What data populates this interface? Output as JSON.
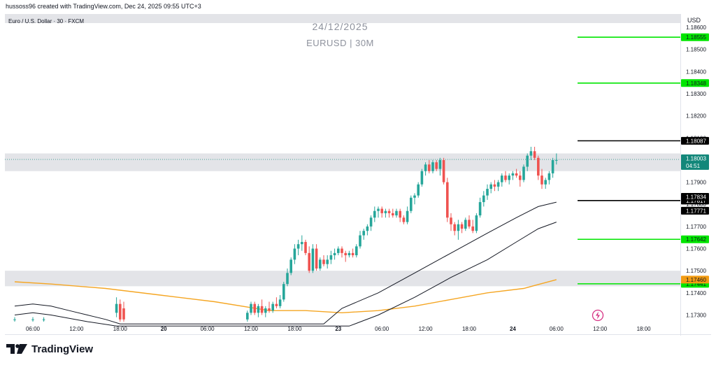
{
  "header": {
    "created_by": "hussoss96 created with TradingView.com, Dec 24, 2025 09:55 UTC+3",
    "symbol_line": "Euro / U.S. Dollar · 30 · FXCM",
    "watermark_date": "24/12/2025",
    "watermark_symbol": "EURUSD | 30M",
    "currency": "USD"
  },
  "logo": {
    "text": "TradingView",
    "icon": "tradingview-logo-icon"
  },
  "colors": {
    "up": "#26a69a",
    "down": "#ef5350",
    "zone": "#e3e4e8",
    "green_line": "#00e600",
    "black_line": "#000000",
    "orange_ma": "#f5a623",
    "price_tag": "#12877a",
    "orange_tag": "#f39c12",
    "flash_icon": "#d63384"
  },
  "chart_data": {
    "type": "candlestick",
    "symbol": "EURUSD",
    "timeframe": "30",
    "y_ticks": [
      1.186,
      1.185,
      1.184,
      1.183,
      1.182,
      1.181,
      1.18,
      1.179,
      1.178,
      1.177,
      1.176,
      1.175,
      1.174,
      1.173
    ],
    "ylim": [
      1.1727,
      1.1866
    ],
    "x_ticks": [
      {
        "label": "06:00",
        "bar": 5,
        "bold": false
      },
      {
        "label": "12:00",
        "bar": 17,
        "bold": false
      },
      {
        "label": "18:00",
        "bar": 29,
        "bold": false
      },
      {
        "label": "20",
        "bar": 41,
        "bold": true
      },
      {
        "label": "06:00",
        "bar": 53,
        "bold": false
      },
      {
        "label": "12:00",
        "bar": 65,
        "bold": false
      },
      {
        "label": "18:00",
        "bar": 77,
        "bold": false
      },
      {
        "label": "23",
        "bar": 89,
        "bold": true
      },
      {
        "label": "06:00",
        "bar": 101,
        "bold": false
      },
      {
        "label": "12:00",
        "bar": 113,
        "bold": false
      },
      {
        "label": "18:00",
        "bar": 125,
        "bold": false
      },
      {
        "label": "24",
        "bar": 137,
        "bold": true
      },
      {
        "label": "06:00",
        "bar": 149,
        "bold": false
      },
      {
        "label": "12:00",
        "bar": 161,
        "bold": false
      },
      {
        "label": "18:00",
        "bar": 173,
        "bold": false
      }
    ],
    "candles": [
      {
        "bar": 0,
        "o": 1.1728,
        "h": 1.1729,
        "l": 1.1727,
        "c": 1.1728
      },
      {
        "bar": 5,
        "o": 1.1728,
        "h": 1.1729,
        "l": 1.1727,
        "c": 1.1728
      },
      {
        "bar": 8,
        "o": 1.1728,
        "h": 1.1729,
        "l": 1.1727,
        "c": 1.1728
      },
      {
        "bar": 28,
        "o": 1.1731,
        "h": 1.1738,
        "l": 1.1729,
        "c": 1.1735
      },
      {
        "bar": 29,
        "o": 1.1735,
        "h": 1.1737,
        "l": 1.1727,
        "c": 1.1728
      },
      {
        "bar": 30,
        "o": 1.1733,
        "h": 1.1736,
        "l": 1.1727,
        "c": 1.1728
      },
      {
        "bar": 64,
        "o": 1.1728,
        "h": 1.1732,
        "l": 1.1727,
        "c": 1.1731
      },
      {
        "bar": 65,
        "o": 1.1731,
        "h": 1.1736,
        "l": 1.173,
        "c": 1.1735
      },
      {
        "bar": 66,
        "o": 1.1735,
        "h": 1.1736,
        "l": 1.173,
        "c": 1.1731
      },
      {
        "bar": 67,
        "o": 1.1731,
        "h": 1.1735,
        "l": 1.1729,
        "c": 1.1734
      },
      {
        "bar": 68,
        "o": 1.1734,
        "h": 1.1737,
        "l": 1.173,
        "c": 1.1731
      },
      {
        "bar": 69,
        "o": 1.1731,
        "h": 1.1734,
        "l": 1.1729,
        "c": 1.1733
      },
      {
        "bar": 70,
        "o": 1.1733,
        "h": 1.1736,
        "l": 1.1731,
        "c": 1.1732
      },
      {
        "bar": 71,
        "o": 1.1732,
        "h": 1.1736,
        "l": 1.1731,
        "c": 1.1735
      },
      {
        "bar": 72,
        "o": 1.1735,
        "h": 1.1738,
        "l": 1.1733,
        "c": 1.1734
      },
      {
        "bar": 73,
        "o": 1.1734,
        "h": 1.1739,
        "l": 1.1733,
        "c": 1.1737
      },
      {
        "bar": 74,
        "o": 1.1737,
        "h": 1.1745,
        "l": 1.1736,
        "c": 1.1744
      },
      {
        "bar": 75,
        "o": 1.1744,
        "h": 1.1751,
        "l": 1.1743,
        "c": 1.1749
      },
      {
        "bar": 76,
        "o": 1.1749,
        "h": 1.1756,
        "l": 1.1748,
        "c": 1.1755
      },
      {
        "bar": 77,
        "o": 1.1755,
        "h": 1.1762,
        "l": 1.1753,
        "c": 1.176
      },
      {
        "bar": 78,
        "o": 1.176,
        "h": 1.1764,
        "l": 1.1757,
        "c": 1.1762
      },
      {
        "bar": 79,
        "o": 1.1762,
        "h": 1.1766,
        "l": 1.1759,
        "c": 1.1763
      },
      {
        "bar": 80,
        "o": 1.1763,
        "h": 1.1764,
        "l": 1.1757,
        "c": 1.1758
      },
      {
        "bar": 81,
        "o": 1.1758,
        "h": 1.1761,
        "l": 1.1749,
        "c": 1.175
      },
      {
        "bar": 82,
        "o": 1.175,
        "h": 1.1762,
        "l": 1.1749,
        "c": 1.176
      },
      {
        "bar": 83,
        "o": 1.176,
        "h": 1.1762,
        "l": 1.175,
        "c": 1.1751
      },
      {
        "bar": 84,
        "o": 1.1751,
        "h": 1.1756,
        "l": 1.175,
        "c": 1.1755
      },
      {
        "bar": 85,
        "o": 1.1755,
        "h": 1.1757,
        "l": 1.1752,
        "c": 1.1753
      },
      {
        "bar": 86,
        "o": 1.1753,
        "h": 1.1757,
        "l": 1.1751,
        "c": 1.1755
      },
      {
        "bar": 87,
        "o": 1.1755,
        "h": 1.1759,
        "l": 1.1753,
        "c": 1.1757
      },
      {
        "bar": 88,
        "o": 1.1757,
        "h": 1.176,
        "l": 1.1755,
        "c": 1.1758
      },
      {
        "bar": 89,
        "o": 1.1758,
        "h": 1.1761,
        "l": 1.1757,
        "c": 1.176
      },
      {
        "bar": 90,
        "o": 1.176,
        "h": 1.1761,
        "l": 1.1756,
        "c": 1.1758
      },
      {
        "bar": 91,
        "o": 1.1758,
        "h": 1.1759,
        "l": 1.1754,
        "c": 1.1757
      },
      {
        "bar": 92,
        "o": 1.1757,
        "h": 1.1759,
        "l": 1.1756,
        "c": 1.1758
      },
      {
        "bar": 93,
        "o": 1.1758,
        "h": 1.176,
        "l": 1.1756,
        "c": 1.1757
      },
      {
        "bar": 94,
        "o": 1.1757,
        "h": 1.1762,
        "l": 1.1756,
        "c": 1.1761
      },
      {
        "bar": 95,
        "o": 1.1761,
        "h": 1.1768,
        "l": 1.176,
        "c": 1.1766
      },
      {
        "bar": 96,
        "o": 1.1766,
        "h": 1.1769,
        "l": 1.1764,
        "c": 1.1768
      },
      {
        "bar": 97,
        "o": 1.1768,
        "h": 1.1771,
        "l": 1.1766,
        "c": 1.177
      },
      {
        "bar": 98,
        "o": 1.177,
        "h": 1.1775,
        "l": 1.1768,
        "c": 1.1774
      },
      {
        "bar": 99,
        "o": 1.1774,
        "h": 1.1779,
        "l": 1.1772,
        "c": 1.1777
      },
      {
        "bar": 100,
        "o": 1.1777,
        "h": 1.1779,
        "l": 1.1774,
        "c": 1.1778
      },
      {
        "bar": 101,
        "o": 1.1778,
        "h": 1.1779,
        "l": 1.1774,
        "c": 1.1776
      },
      {
        "bar": 102,
        "o": 1.1776,
        "h": 1.1778,
        "l": 1.1774,
        "c": 1.1777
      },
      {
        "bar": 103,
        "o": 1.1777,
        "h": 1.1778,
        "l": 1.1774,
        "c": 1.1776
      },
      {
        "bar": 104,
        "o": 1.1776,
        "h": 1.1778,
        "l": 1.1774,
        "c": 1.1775
      },
      {
        "bar": 105,
        "o": 1.1775,
        "h": 1.1778,
        "l": 1.1774,
        "c": 1.1777
      },
      {
        "bar": 106,
        "o": 1.1777,
        "h": 1.1778,
        "l": 1.1772,
        "c": 1.1774
      },
      {
        "bar": 107,
        "o": 1.1774,
        "h": 1.1775,
        "l": 1.1771,
        "c": 1.1772
      },
      {
        "bar": 108,
        "o": 1.1772,
        "h": 1.1779,
        "l": 1.1771,
        "c": 1.1777
      },
      {
        "bar": 109,
        "o": 1.1777,
        "h": 1.1784,
        "l": 1.1776,
        "c": 1.1783
      },
      {
        "bar": 110,
        "o": 1.1783,
        "h": 1.1785,
        "l": 1.178,
        "c": 1.1784
      },
      {
        "bar": 111,
        "o": 1.1784,
        "h": 1.179,
        "l": 1.1783,
        "c": 1.1789
      },
      {
        "bar": 112,
        "o": 1.1789,
        "h": 1.1796,
        "l": 1.1788,
        "c": 1.1795
      },
      {
        "bar": 113,
        "o": 1.1795,
        "h": 1.1799,
        "l": 1.1793,
        "c": 1.1798
      },
      {
        "bar": 114,
        "o": 1.1798,
        "h": 1.18,
        "l": 1.1794,
        "c": 1.1795
      },
      {
        "bar": 115,
        "o": 1.1795,
        "h": 1.18,
        "l": 1.1794,
        "c": 1.1799
      },
      {
        "bar": 116,
        "o": 1.1799,
        "h": 1.18,
        "l": 1.1795,
        "c": 1.1796
      },
      {
        "bar": 117,
        "o": 1.1796,
        "h": 1.1801,
        "l": 1.1793,
        "c": 1.18
      },
      {
        "bar": 118,
        "o": 1.18,
        "h": 1.1801,
        "l": 1.1789,
        "c": 1.179
      },
      {
        "bar": 119,
        "o": 1.179,
        "h": 1.1792,
        "l": 1.1772,
        "c": 1.1774
      },
      {
        "bar": 120,
        "o": 1.1774,
        "h": 1.1776,
        "l": 1.1768,
        "c": 1.1771
      },
      {
        "bar": 121,
        "o": 1.1771,
        "h": 1.1772,
        "l": 1.1766,
        "c": 1.1768
      },
      {
        "bar": 122,
        "o": 1.1768,
        "h": 1.1773,
        "l": 1.1764,
        "c": 1.1771
      },
      {
        "bar": 123,
        "o": 1.1771,
        "h": 1.1772,
        "l": 1.1767,
        "c": 1.1769
      },
      {
        "bar": 124,
        "o": 1.1769,
        "h": 1.1774,
        "l": 1.1768,
        "c": 1.1773
      },
      {
        "bar": 125,
        "o": 1.1773,
        "h": 1.1775,
        "l": 1.1769,
        "c": 1.177
      },
      {
        "bar": 126,
        "o": 1.177,
        "h": 1.1773,
        "l": 1.1767,
        "c": 1.1768
      },
      {
        "bar": 127,
        "o": 1.1768,
        "h": 1.1776,
        "l": 1.1767,
        "c": 1.1775
      },
      {
        "bar": 128,
        "o": 1.1775,
        "h": 1.1783,
        "l": 1.1774,
        "c": 1.1781
      },
      {
        "bar": 129,
        "o": 1.1781,
        "h": 1.1786,
        "l": 1.1779,
        "c": 1.1784
      },
      {
        "bar": 130,
        "o": 1.1784,
        "h": 1.1789,
        "l": 1.1782,
        "c": 1.1787
      },
      {
        "bar": 131,
        "o": 1.1787,
        "h": 1.179,
        "l": 1.1785,
        "c": 1.1789
      },
      {
        "bar": 132,
        "o": 1.1789,
        "h": 1.1791,
        "l": 1.1786,
        "c": 1.1788
      },
      {
        "bar": 133,
        "o": 1.1788,
        "h": 1.1791,
        "l": 1.1786,
        "c": 1.179
      },
      {
        "bar": 134,
        "o": 1.179,
        "h": 1.1794,
        "l": 1.1788,
        "c": 1.1793
      },
      {
        "bar": 135,
        "o": 1.1793,
        "h": 1.1795,
        "l": 1.179,
        "c": 1.1791
      },
      {
        "bar": 136,
        "o": 1.1791,
        "h": 1.1794,
        "l": 1.1789,
        "c": 1.1793
      },
      {
        "bar": 137,
        "o": 1.1793,
        "h": 1.1795,
        "l": 1.1791,
        "c": 1.1794
      },
      {
        "bar": 138,
        "o": 1.1794,
        "h": 1.1796,
        "l": 1.1792,
        "c": 1.1793
      },
      {
        "bar": 139,
        "o": 1.1793,
        "h": 1.1795,
        "l": 1.1788,
        "c": 1.1791
      },
      {
        "bar": 140,
        "o": 1.1791,
        "h": 1.1798,
        "l": 1.179,
        "c": 1.1797
      },
      {
        "bar": 141,
        "o": 1.1797,
        "h": 1.1803,
        "l": 1.1795,
        "c": 1.1802
      },
      {
        "bar": 142,
        "o": 1.1802,
        "h": 1.1806,
        "l": 1.18,
        "c": 1.1804
      },
      {
        "bar": 143,
        "o": 1.1804,
        "h": 1.1806,
        "l": 1.18,
        "c": 1.1801
      },
      {
        "bar": 144,
        "o": 1.1801,
        "h": 1.1802,
        "l": 1.1791,
        "c": 1.1793
      },
      {
        "bar": 145,
        "o": 1.1793,
        "h": 1.1796,
        "l": 1.1787,
        "c": 1.1789
      },
      {
        "bar": 146,
        "o": 1.1789,
        "h": 1.1792,
        "l": 1.1787,
        "c": 1.1791
      },
      {
        "bar": 147,
        "o": 1.1791,
        "h": 1.1795,
        "l": 1.1789,
        "c": 1.1794
      },
      {
        "bar": 148,
        "o": 1.1794,
        "h": 1.1801,
        "l": 1.1792,
        "c": 1.18
      },
      {
        "bar": 149,
        "o": 1.18,
        "h": 1.1803,
        "l": 1.1798,
        "c": 1.18
      }
    ],
    "ma_orange": {
      "color": "#f5a623",
      "points": [
        [
          0,
          1.1745
        ],
        [
          10,
          1.1744
        ],
        [
          25,
          1.1742
        ],
        [
          40,
          1.1739
        ],
        [
          55,
          1.1736
        ],
        [
          70,
          1.1732
        ],
        [
          80,
          1.1732
        ],
        [
          90,
          1.1731
        ],
        [
          100,
          1.1732
        ],
        [
          110,
          1.1734
        ],
        [
          120,
          1.1737
        ],
        [
          130,
          1.174
        ],
        [
          140,
          1.1742
        ],
        [
          149,
          1.1746
        ]
      ]
    },
    "ma_black_fast": {
      "color": "#131722",
      "points": [
        [
          0,
          1.1734
        ],
        [
          5,
          1.1735
        ],
        [
          10,
          1.1734
        ],
        [
          15,
          1.1732
        ],
        [
          20,
          1.173
        ],
        [
          25,
          1.1728
        ],
        [
          29,
          1.1726
        ],
        [
          85,
          1.1726
        ],
        [
          90,
          1.1733
        ],
        [
          100,
          1.174
        ],
        [
          110,
          1.1749
        ],
        [
          120,
          1.1758
        ],
        [
          130,
          1.1767
        ],
        [
          138,
          1.1774
        ],
        [
          144,
          1.1779
        ],
        [
          149,
          1.1781
        ]
      ]
    },
    "ma_black_slow": {
      "color": "#131722",
      "points": [
        [
          0,
          1.173
        ],
        [
          5,
          1.1731
        ],
        [
          10,
          1.173
        ],
        [
          20,
          1.1727
        ],
        [
          28,
          1.1725
        ],
        [
          92,
          1.1725
        ],
        [
          100,
          1.173
        ],
        [
          110,
          1.1738
        ],
        [
          120,
          1.1747
        ],
        [
          130,
          1.1755
        ],
        [
          138,
          1.1763
        ],
        [
          144,
          1.1769
        ],
        [
          149,
          1.1772
        ]
      ]
    },
    "zones": [
      {
        "name": "resistance-zone",
        "from": 1.1795,
        "to": 1.1803
      },
      {
        "name": "support-zone",
        "from": 1.1743,
        "to": 1.175
      }
    ],
    "level_lines": [
      {
        "name": "level-1-18555",
        "value": 1.18555,
        "color": "#00e600",
        "label": "1.18555"
      },
      {
        "name": "level-1-18348",
        "value": 1.18348,
        "color": "#00e600",
        "label": "1.18348"
      },
      {
        "name": "level-1-18087",
        "value": 1.18087,
        "color": "#000000",
        "label": "1.18087"
      },
      {
        "name": "level-1-17817",
        "value": 1.17817,
        "color": "#000000",
        "label": "1.17817"
      },
      {
        "name": "level-1-17642",
        "value": 1.17642,
        "color": "#00e600",
        "label": "1.17642"
      },
      {
        "name": "level-1-17441",
        "value": 1.17441,
        "color": "#00e600",
        "label": "1.17441"
      }
    ],
    "axis_tags": [
      {
        "name": "tag-1-17834",
        "value": 1.17834,
        "bg": "#000000",
        "fg": "#ffffff",
        "label": "1.17834"
      },
      {
        "name": "tag-1-17771",
        "value": 1.17771,
        "bg": "#000000",
        "fg": "#ffffff",
        "label": "1.17771"
      },
      {
        "name": "tag-1-17460",
        "value": 1.1746,
        "bg": "#f39c12",
        "fg": "#131722",
        "label": "1.17460"
      }
    ],
    "current_price": {
      "value": 1.18003,
      "label": "1.18003",
      "countdown": "04:51",
      "color": "#12877a"
    }
  }
}
